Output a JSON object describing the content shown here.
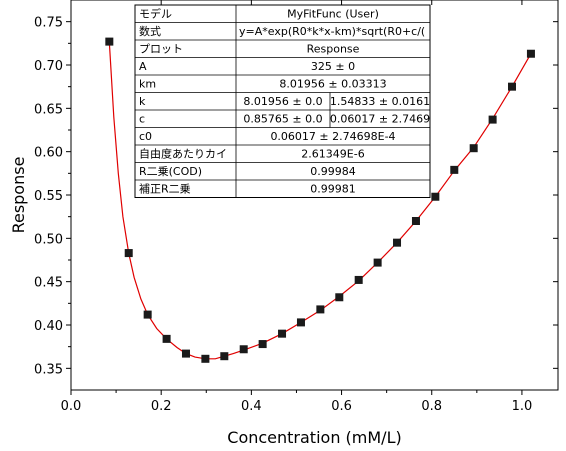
{
  "chart_data": {
    "type": "scatter",
    "xlabel": "Concentration (mM/L)",
    "ylabel": "Response",
    "xlim": [
      0.0,
      1.08
    ],
    "ylim": [
      0.325,
      0.775
    ],
    "x_ticks": [
      0.0,
      0.2,
      0.4,
      0.6,
      0.8,
      1.0
    ],
    "x_tick_labels": [
      "0.0",
      "0.2",
      "0.4",
      "0.6",
      "0.8",
      "1.0"
    ],
    "y_ticks": [
      0.35,
      0.4,
      0.45,
      0.5,
      0.55,
      0.6,
      0.65,
      0.7,
      0.75
    ],
    "y_tick_labels": [
      "0.35",
      "0.40",
      "0.45",
      "0.50",
      "0.55",
      "0.60",
      "0.65",
      "0.70",
      "0.75"
    ],
    "marker_color": "#1a1a1a",
    "fit_color": "#e00000",
    "series": [
      {
        "x": [
          0.085,
          0.128,
          0.17,
          0.212,
          0.255,
          0.298,
          0.34,
          0.383,
          0.425,
          0.468,
          0.51,
          0.553,
          0.595,
          0.638,
          0.68,
          0.723,
          0.765,
          0.808,
          0.85,
          0.893,
          0.935,
          0.978,
          1.02
        ],
        "y": [
          0.727,
          0.483,
          0.412,
          0.384,
          0.367,
          0.361,
          0.364,
          0.372,
          0.378,
          0.39,
          0.403,
          0.418,
          0.432,
          0.452,
          0.472,
          0.495,
          0.52,
          0.548,
          0.579,
          0.604,
          0.637,
          0.675,
          0.713
        ]
      }
    ],
    "fit_curve": {
      "x": [
        0.085,
        0.095,
        0.105,
        0.115,
        0.128,
        0.14,
        0.155,
        0.17,
        0.19,
        0.212,
        0.235,
        0.255,
        0.275,
        0.298,
        0.32,
        0.34,
        0.36,
        0.383,
        0.425,
        0.468,
        0.51,
        0.553,
        0.595,
        0.638,
        0.68,
        0.723,
        0.765,
        0.808,
        0.85,
        0.893,
        0.935,
        0.978,
        1.02
      ],
      "y": [
        0.727,
        0.64,
        0.575,
        0.525,
        0.483,
        0.455,
        0.43,
        0.412,
        0.396,
        0.384,
        0.374,
        0.367,
        0.363,
        0.361,
        0.361,
        0.364,
        0.367,
        0.371,
        0.379,
        0.39,
        0.403,
        0.417,
        0.433,
        0.451,
        0.472,
        0.495,
        0.52,
        0.548,
        0.578,
        0.605,
        0.638,
        0.675,
        0.713
      ]
    },
    "fit_table": {
      "rows": [
        [
          "モデル",
          "MyFitFunc (User)"
        ],
        [
          "数式",
          "y=A*exp(R0*k*x-km)*sqrt(R0+c/("
        ],
        [
          "プロット",
          "Response"
        ],
        [
          "A",
          "325 ± 0"
        ],
        [
          "km",
          "8.01956 ± 0.03313"
        ],
        [
          "k",
          "8.01956 ± 0.0",
          "1.54833 ± 0.0161"
        ],
        [
          "c",
          "0.85765 ± 0.0",
          "0.06017 ± 2.7469"
        ],
        [
          "c0",
          "0.06017 ± 2.74698E-4"
        ],
        [
          "自由度あたりカイ",
          "2.61349E-6"
        ],
        [
          "R二乗(COD)",
          "0.99984"
        ],
        [
          "補正R二乗",
          "0.99981"
        ]
      ]
    }
  }
}
